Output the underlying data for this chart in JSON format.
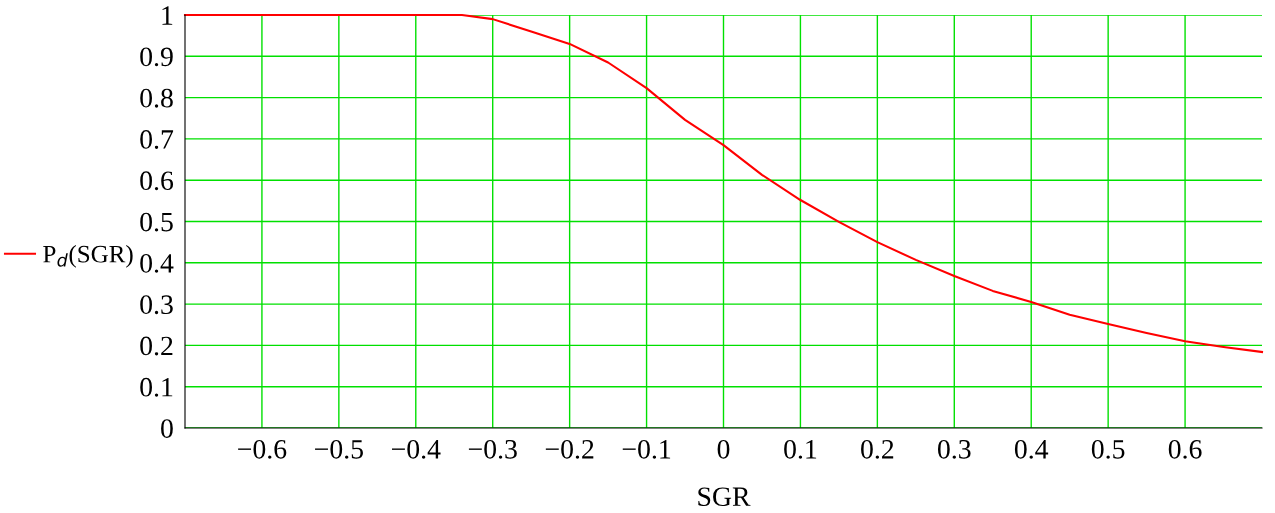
{
  "chart_data": {
    "type": "line",
    "xlabel": "SGR",
    "legend": "left",
    "grid": true,
    "line_style": "solid",
    "x": [
      -0.7,
      -0.34,
      -0.3,
      -0.25,
      -0.2,
      -0.15,
      -0.1,
      -0.05,
      0,
      0.05,
      0.1,
      0.15,
      0.2,
      0.25,
      0.3,
      0.35,
      0.4,
      0.45,
      0.5,
      0.55,
      0.6,
      0.65,
      0.7
    ],
    "series": [
      {
        "name": "P$_{d}$(SGR)",
        "color": "#ff0000",
        "values": [
          1,
          1,
          0.99,
          0.96,
          0.93,
          0.885,
          0.823,
          0.746,
          0.685,
          0.613,
          0.552,
          0.499,
          0.45,
          0.407,
          0.368,
          0.332,
          0.305,
          0.274,
          0.252,
          0.23,
          0.21,
          0.196,
          0.184
        ]
      }
    ],
    "xlim": [
      -0.7,
      0.7
    ],
    "xticks": [
      {
        "value": -0.6,
        "label": "−0.6"
      },
      {
        "value": -0.5,
        "label": "−0.5"
      },
      {
        "value": -0.4,
        "label": "−0.4"
      },
      {
        "value": -0.3,
        "label": "−0.3"
      },
      {
        "value": -0.2,
        "label": "−0.2"
      },
      {
        "value": -0.1,
        "label": "−0.1"
      },
      0,
      0.1,
      0.2,
      0.3,
      0.4,
      0.5,
      0.6
    ],
    "ylim": [
      0,
      1
    ],
    "yticks": [
      0,
      0.1,
      0.2,
      0.3,
      0.4,
      0.5,
      0.6,
      0.7,
      0.8,
      0.9,
      1
    ]
  }
}
